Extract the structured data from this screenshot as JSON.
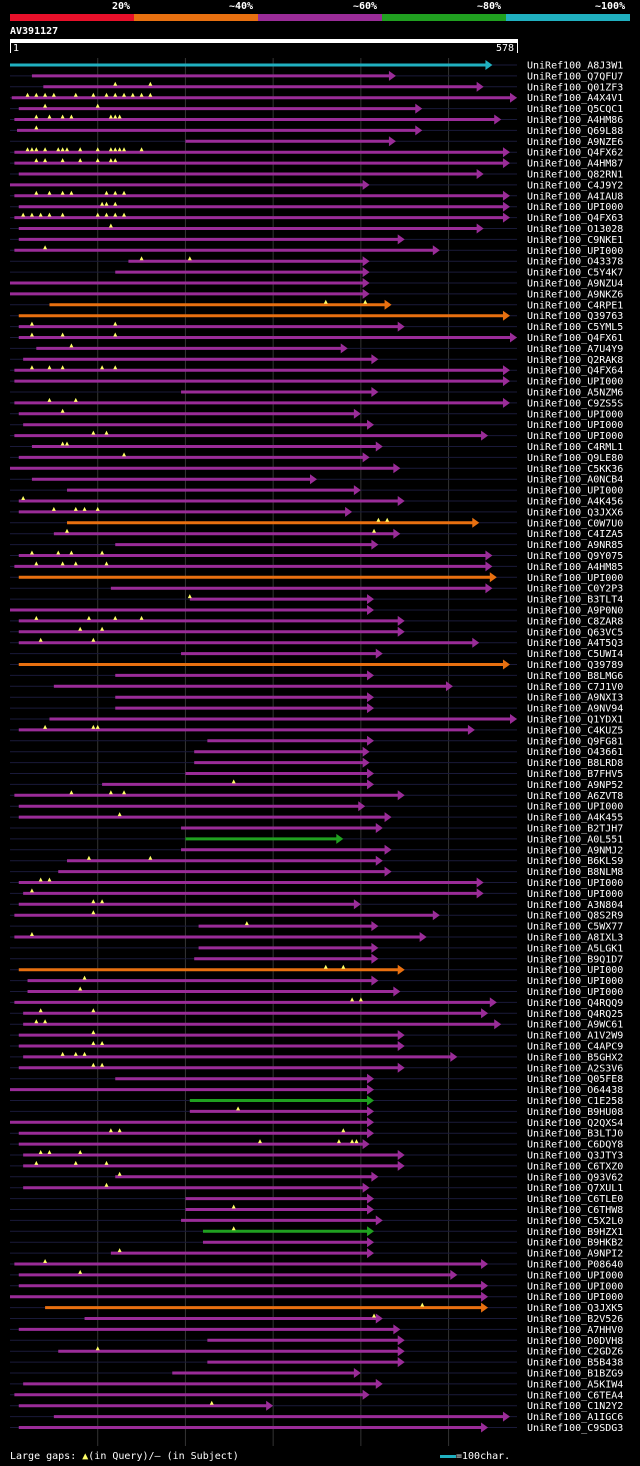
{
  "legend": {
    "segments": [
      {
        "label": "20%",
        "color": "#e8102a"
      },
      {
        "label": "~40%",
        "color": "#e87010"
      },
      {
        "label": "~60%",
        "color": "#9a2c98"
      },
      {
        "label": "~80%",
        "color": "#20a020"
      },
      {
        "label": "~100%",
        "color": "#20b0c0"
      }
    ]
  },
  "query": {
    "name": "AV391127",
    "start": "1",
    "end": "578",
    "length": 578
  },
  "footer": {
    "gaps_prefix": "Large gaps: ",
    "gaps_query_glyph": "▲",
    "gaps_query_text": "(in Query)/",
    "gaps_subject_glyph": "–",
    "gaps_subject_text": " (in Subject)",
    "scale_text": "=100char."
  },
  "colors": {
    "c1": "#e8102a",
    "c2": "#e87010",
    "c3": "#9a2c98",
    "c4": "#20a020",
    "c5": "#20b0c0",
    "gap": "#ffff66"
  },
  "hits": [
    {
      "label": "UniRef100_A8J3W1",
      "s": 0,
      "e": 550,
      "c": 5,
      "g": []
    },
    {
      "label": "UniRef100_Q7QFU7",
      "s": 25,
      "e": 440,
      "c": 3,
      "g": []
    },
    {
      "label": "UniRef100_Q01ZF3",
      "s": 38,
      "e": 540,
      "c": 3,
      "g": [
        120,
        160
      ]
    },
    {
      "label": "UniRef100_A4X4V1",
      "s": 2,
      "e": 578,
      "c": 3,
      "g": [
        20,
        30,
        40,
        50,
        75,
        95,
        110,
        120,
        130,
        140,
        150,
        160
      ]
    },
    {
      "label": "UniRef100_Q5CQC1",
      "s": 10,
      "e": 470,
      "c": 3,
      "g": [
        40,
        100
      ]
    },
    {
      "label": "UniRef100_A4HM86",
      "s": 5,
      "e": 560,
      "c": 3,
      "g": [
        30,
        45,
        60,
        70,
        115,
        120,
        125
      ]
    },
    {
      "label": "UniRef100_Q69L88",
      "s": 8,
      "e": 470,
      "c": 3,
      "g": [
        30
      ]
    },
    {
      "label": "UniRef100_A9NZE6",
      "s": 200,
      "e": 440,
      "c": 3,
      "g": []
    },
    {
      "label": "UniRef100_Q4FX62",
      "s": 5,
      "e": 570,
      "c": 3,
      "g": [
        20,
        25,
        30,
        40,
        55,
        60,
        65,
        80,
        100,
        115,
        120,
        125,
        130,
        150
      ]
    },
    {
      "label": "UniRef100_A4HM87",
      "s": 5,
      "e": 570,
      "c": 3,
      "g": [
        30,
        40,
        60,
        80,
        100,
        115,
        120
      ]
    },
    {
      "label": "UniRef100_Q82RN1",
      "s": 10,
      "e": 540,
      "c": 3,
      "g": []
    },
    {
      "label": "UniRef100_C4J9Y2",
      "s": 0,
      "e": 410,
      "c": 3,
      "g": []
    },
    {
      "label": "UniRef100_A4IAU8",
      "s": 5,
      "e": 570,
      "c": 3,
      "g": [
        30,
        45,
        60,
        70,
        110,
        120,
        130
      ]
    },
    {
      "label": "UniRef100_UPI000",
      "s": 10,
      "e": 570,
      "c": 3,
      "g": [
        105,
        110,
        120
      ]
    },
    {
      "label": "UniRef100_Q4FX63",
      "s": 5,
      "e": 570,
      "c": 3,
      "g": [
        15,
        25,
        35,
        45,
        60,
        100,
        110,
        120,
        130
      ]
    },
    {
      "label": "UniRef100_O13028",
      "s": 10,
      "e": 540,
      "c": 3,
      "g": [
        115
      ]
    },
    {
      "label": "UniRef100_C9NKE1",
      "s": 10,
      "e": 450,
      "c": 3,
      "g": []
    },
    {
      "label": "UniRef100_UPI000",
      "s": 5,
      "e": 490,
      "c": 3,
      "g": [
        40
      ]
    },
    {
      "label": "UniRef100_O43378",
      "s": 135,
      "e": 410,
      "c": 3,
      "g": [
        150,
        205
      ]
    },
    {
      "label": "UniRef100_C5Y4K7",
      "s": 120,
      "e": 410,
      "c": 3,
      "g": []
    },
    {
      "label": "UniRef100_A9NZU4",
      "s": 0,
      "e": 410,
      "c": 3,
      "g": []
    },
    {
      "label": "UniRef100_A9NKZ6",
      "s": 0,
      "e": 410,
      "c": 3,
      "g": []
    },
    {
      "label": "UniRef100_C4RPE1",
      "s": 45,
      "e": 435,
      "c": 2,
      "g": [
        360,
        405
      ]
    },
    {
      "label": "UniRef100_Q39763",
      "s": 10,
      "e": 570,
      "c": 2,
      "g": []
    },
    {
      "label": "UniRef100_C5YML5",
      "s": 10,
      "e": 450,
      "c": 3,
      "g": [
        25,
        120
      ]
    },
    {
      "label": "UniRef100_Q4FX61",
      "s": 10,
      "e": 578,
      "c": 3,
      "g": [
        25,
        60,
        120
      ]
    },
    {
      "label": "UniRef100_A7U4Y9",
      "s": 30,
      "e": 385,
      "c": 3,
      "g": [
        70
      ]
    },
    {
      "label": "UniRef100_Q2RAK8",
      "s": 15,
      "e": 420,
      "c": 3,
      "g": []
    },
    {
      "label": "UniRef100_Q4FX64",
      "s": 5,
      "e": 570,
      "c": 3,
      "g": [
        25,
        45,
        60,
        105,
        120
      ]
    },
    {
      "label": "UniRef100_UPI000",
      "s": 5,
      "e": 570,
      "c": 3,
      "g": []
    },
    {
      "label": "UniRef100_A5NZM6",
      "s": 195,
      "e": 420,
      "c": 3,
      "g": []
    },
    {
      "label": "UniRef100_C9ZS5S",
      "s": 5,
      "e": 570,
      "c": 3,
      "g": [
        45,
        75
      ]
    },
    {
      "label": "UniRef100_UPI000",
      "s": 10,
      "e": 400,
      "c": 3,
      "g": [
        60
      ]
    },
    {
      "label": "UniRef100_UPI000",
      "s": 15,
      "e": 415,
      "c": 3,
      "g": []
    },
    {
      "label": "UniRef100_UPI000",
      "s": 5,
      "e": 545,
      "c": 3,
      "g": [
        95,
        110
      ]
    },
    {
      "label": "UniRef100_C4RML1",
      "s": 25,
      "e": 425,
      "c": 3,
      "g": [
        60,
        65
      ]
    },
    {
      "label": "UniRef100_Q9LE80",
      "s": 10,
      "e": 410,
      "c": 3,
      "g": [
        130
      ]
    },
    {
      "label": "UniRef100_C5KK36",
      "s": 0,
      "e": 445,
      "c": 3,
      "g": []
    },
    {
      "label": "UniRef100_A0NCB4",
      "s": 25,
      "e": 350,
      "c": 3,
      "g": []
    },
    {
      "label": "UniRef100_UPI000",
      "s": 65,
      "e": 400,
      "c": 3,
      "g": []
    },
    {
      "label": "UniRef100_A4K456",
      "s": 10,
      "e": 450,
      "c": 3,
      "g": [
        15
      ]
    },
    {
      "label": "UniRef100_Q3JXX6",
      "s": 10,
      "e": 390,
      "c": 3,
      "g": [
        50,
        75,
        85,
        100
      ]
    },
    {
      "label": "UniRef100_C0W7U0",
      "s": 65,
      "e": 535,
      "c": 2,
      "g": [
        420,
        430
      ]
    },
    {
      "label": "UniRef100_C4IZA5",
      "s": 50,
      "e": 445,
      "c": 3,
      "g": [
        65,
        415
      ]
    },
    {
      "label": "UniRef100_A9NR85",
      "s": 120,
      "e": 420,
      "c": 3,
      "g": []
    },
    {
      "label": "UniRef100_Q9Y075",
      "s": 10,
      "e": 550,
      "c": 3,
      "g": [
        25,
        55,
        70,
        105
      ]
    },
    {
      "label": "UniRef100_A4HM85",
      "s": 5,
      "e": 550,
      "c": 3,
      "g": [
        30,
        60,
        75,
        110
      ]
    },
    {
      "label": "UniRef100_UPI000",
      "s": 10,
      "e": 555,
      "c": 2,
      "g": []
    },
    {
      "label": "UniRef100_C0Y2P3",
      "s": 115,
      "e": 550,
      "c": 3,
      "g": []
    },
    {
      "label": "UniRef100_B3TLT4",
      "s": 205,
      "e": 415,
      "c": 3,
      "g": [
        205
      ]
    },
    {
      "label": "UniRef100_A9P0N0",
      "s": 0,
      "e": 415,
      "c": 3,
      "g": []
    },
    {
      "label": "UniRef100_C8ZAR8",
      "s": 10,
      "e": 450,
      "c": 3,
      "g": [
        30,
        90,
        120,
        150
      ]
    },
    {
      "label": "UniRef100_Q63VC5",
      "s": 10,
      "e": 450,
      "c": 3,
      "g": [
        80,
        105
      ]
    },
    {
      "label": "UniRef100_A4T5Q3",
      "s": 10,
      "e": 535,
      "c": 3,
      "g": [
        35,
        95
      ]
    },
    {
      "label": "UniRef100_C5UWI4",
      "s": 195,
      "e": 425,
      "c": 3,
      "g": []
    },
    {
      "label": "UniRef100_Q39789",
      "s": 10,
      "e": 570,
      "c": 2,
      "g": []
    },
    {
      "label": "UniRef100_B8LMG6",
      "s": 120,
      "e": 415,
      "c": 3,
      "g": []
    },
    {
      "label": "UniRef100_C7J1V0",
      "s": 50,
      "e": 505,
      "c": 3,
      "g": []
    },
    {
      "label": "UniRef100_A9NXI3",
      "s": 120,
      "e": 415,
      "c": 3,
      "g": []
    },
    {
      "label": "UniRef100_A9NV94",
      "s": 120,
      "e": 415,
      "c": 3,
      "g": []
    },
    {
      "label": "UniRef100_Q1YDX1",
      "s": 45,
      "e": 578,
      "c": 3,
      "g": []
    },
    {
      "label": "UniRef100_C4KUZ5",
      "s": 10,
      "e": 530,
      "c": 3,
      "g": [
        40,
        95,
        100
      ]
    },
    {
      "label": "UniRef100_Q9FG81",
      "s": 225,
      "e": 415,
      "c": 3,
      "g": []
    },
    {
      "label": "UniRef100_O43661",
      "s": 210,
      "e": 410,
      "c": 3,
      "g": []
    },
    {
      "label": "UniRef100_B8LRD8",
      "s": 210,
      "e": 410,
      "c": 3,
      "g": []
    },
    {
      "label": "UniRef100_B7FHV5",
      "s": 200,
      "e": 415,
      "c": 3,
      "g": []
    },
    {
      "label": "UniRef100_A9NP52",
      "s": 105,
      "e": 415,
      "c": 3,
      "g": [
        255
      ]
    },
    {
      "label": "UniRef100_A6ZVT8",
      "s": 5,
      "e": 450,
      "c": 3,
      "g": [
        70,
        115,
        130
      ]
    },
    {
      "label": "UniRef100_UPI000",
      "s": 10,
      "e": 405,
      "c": 3,
      "g": []
    },
    {
      "label": "UniRef100_A4K455",
      "s": 10,
      "e": 435,
      "c": 3,
      "g": [
        125
      ]
    },
    {
      "label": "UniRef100_B2TJH7",
      "s": 195,
      "e": 425,
      "c": 3,
      "g": []
    },
    {
      "label": "UniRef100_A0L551",
      "s": 200,
      "e": 380,
      "c": 4,
      "g": []
    },
    {
      "label": "UniRef100_A9NMJ2",
      "s": 195,
      "e": 435,
      "c": 3,
      "g": []
    },
    {
      "label": "UniRef100_B6KLS9",
      "s": 65,
      "e": 425,
      "c": 3,
      "g": [
        90,
        160
      ]
    },
    {
      "label": "UniRef100_B8NLM8",
      "s": 55,
      "e": 435,
      "c": 3,
      "g": []
    },
    {
      "label": "UniRef100_UPI000",
      "s": 10,
      "e": 540,
      "c": 3,
      "g": [
        35,
        45
      ]
    },
    {
      "label": "UniRef100_UPI000",
      "s": 15,
      "e": 540,
      "c": 3,
      "g": [
        25
      ]
    },
    {
      "label": "UniRef100_A3N804",
      "s": 10,
      "e": 400,
      "c": 3,
      "g": [
        95,
        105
      ]
    },
    {
      "label": "UniRef100_Q8S2R9",
      "s": 5,
      "e": 490,
      "c": 3,
      "g": [
        95
      ]
    },
    {
      "label": "UniRef100_C5WX77",
      "s": 215,
      "e": 420,
      "c": 3,
      "g": [
        270
      ]
    },
    {
      "label": "UniRef100_A8IXL3",
      "s": 5,
      "e": 475,
      "c": 3,
      "g": [
        25
      ]
    },
    {
      "label": "UniRef100_A5LGK1",
      "s": 215,
      "e": 420,
      "c": 3,
      "g": []
    },
    {
      "label": "UniRef100_B9Q1D7",
      "s": 210,
      "e": 420,
      "c": 3,
      "g": []
    },
    {
      "label": "UniRef100_UPI000",
      "s": 10,
      "e": 450,
      "c": 2,
      "g": [
        360,
        380
      ]
    },
    {
      "label": "UniRef100_UPI000",
      "s": 20,
      "e": 420,
      "c": 3,
      "g": [
        85
      ]
    },
    {
      "label": "UniRef100_UPI000",
      "s": 20,
      "e": 445,
      "c": 3,
      "g": [
        80
      ]
    },
    {
      "label": "UniRef100_Q4RQQ9",
      "s": 5,
      "e": 555,
      "c": 3,
      "g": [
        390,
        400
      ]
    },
    {
      "label": "UniRef100_Q4RQ25",
      "s": 15,
      "e": 545,
      "c": 3,
      "g": [
        35,
        95
      ]
    },
    {
      "label": "UniRef100_A9WC61",
      "s": 15,
      "e": 560,
      "c": 3,
      "g": [
        30,
        40
      ]
    },
    {
      "label": "UniRef100_A1V2W9",
      "s": 10,
      "e": 450,
      "c": 3,
      "g": [
        95
      ]
    },
    {
      "label": "UniRef100_C4APC9",
      "s": 10,
      "e": 450,
      "c": 3,
      "g": [
        95,
        105
      ]
    },
    {
      "label": "UniRef100_B5GHX2",
      "s": 15,
      "e": 510,
      "c": 3,
      "g": [
        60,
        75,
        85
      ]
    },
    {
      "label": "UniRef100_A2S3V6",
      "s": 10,
      "e": 450,
      "c": 3,
      "g": [
        95,
        105
      ]
    },
    {
      "label": "UniRef100_Q05FE8",
      "s": 120,
      "e": 415,
      "c": 3,
      "g": []
    },
    {
      "label": "UniRef100_O64438",
      "s": 0,
      "e": 415,
      "c": 3,
      "g": []
    },
    {
      "label": "UniRef100_C1E258",
      "s": 205,
      "e": 415,
      "c": 4,
      "g": []
    },
    {
      "label": "UniRef100_B9HU08",
      "s": 205,
      "e": 415,
      "c": 3,
      "g": [
        260
      ]
    },
    {
      "label": "UniRef100_Q2QXS4",
      "s": 0,
      "e": 415,
      "c": 3,
      "g": []
    },
    {
      "label": "UniRef100_B3LTJ0",
      "s": 10,
      "e": 415,
      "c": 3,
      "g": [
        115,
        125,
        380
      ]
    },
    {
      "label": "UniRef100_C6DQY8",
      "s": 10,
      "e": 410,
      "c": 3,
      "g": [
        285,
        375,
        390,
        395
      ]
    },
    {
      "label": "UniRef100_Q3JTY3",
      "s": 15,
      "e": 450,
      "c": 3,
      "g": [
        35,
        45,
        80
      ]
    },
    {
      "label": "UniRef100_C6TXZ0",
      "s": 15,
      "e": 450,
      "c": 3,
      "g": [
        30,
        75,
        110
      ]
    },
    {
      "label": "UniRef100_Q93V62",
      "s": 120,
      "e": 420,
      "c": 3,
      "g": [
        125
      ]
    },
    {
      "label": "UniRef100_Q7XUL1",
      "s": 15,
      "e": 410,
      "c": 3,
      "g": [
        110
      ]
    },
    {
      "label": "UniRef100_C6TLE0",
      "s": 200,
      "e": 415,
      "c": 3,
      "g": []
    },
    {
      "label": "UniRef100_C6THW8",
      "s": 200,
      "e": 415,
      "c": 3,
      "g": [
        255
      ]
    },
    {
      "label": "UniRef100_C5X2L0",
      "s": 195,
      "e": 425,
      "c": 3,
      "g": []
    },
    {
      "label": "UniRef100_B9HZX1",
      "s": 220,
      "e": 415,
      "c": 4,
      "g": [
        255
      ]
    },
    {
      "label": "UniRef100_B9HKB2",
      "s": 220,
      "e": 415,
      "c": 3,
      "g": []
    },
    {
      "label": "UniRef100_A9NPI2",
      "s": 115,
      "e": 415,
      "c": 3,
      "g": [
        125
      ]
    },
    {
      "label": "UniRef100_P08640",
      "s": 5,
      "e": 545,
      "c": 3,
      "g": [
        40
      ]
    },
    {
      "label": "UniRef100_UPI000",
      "s": 10,
      "e": 510,
      "c": 3,
      "g": [
        80
      ]
    },
    {
      "label": "UniRef100_UPI000",
      "s": 10,
      "e": 545,
      "c": 3,
      "g": []
    },
    {
      "label": "UniRef100_UPI000",
      "s": 0,
      "e": 545,
      "c": 3,
      "g": []
    },
    {
      "label": "UniRef100_Q3JXK5",
      "s": 40,
      "e": 545,
      "c": 2,
      "g": [
        470
      ]
    },
    {
      "label": "UniRef100_B2V526",
      "s": 85,
      "e": 425,
      "c": 3,
      "g": [
        415
      ]
    },
    {
      "label": "UniRef100_A7HHV0",
      "s": 10,
      "e": 445,
      "c": 3,
      "g": []
    },
    {
      "label": "UniRef100_D0DVH8",
      "s": 225,
      "e": 450,
      "c": 3,
      "g": []
    },
    {
      "label": "UniRef100_C2GDZ6",
      "s": 55,
      "e": 450,
      "c": 3,
      "g": [
        100
      ]
    },
    {
      "label": "UniRef100_B5B438",
      "s": 225,
      "e": 450,
      "c": 3,
      "g": []
    },
    {
      "label": "UniRef100_B1BZG9",
      "s": 185,
      "e": 400,
      "c": 3,
      "g": []
    },
    {
      "label": "UniRef100_A5KIW4",
      "s": 15,
      "e": 425,
      "c": 3,
      "g": []
    },
    {
      "label": "UniRef100_C6TEA4",
      "s": 5,
      "e": 410,
      "c": 3,
      "g": []
    },
    {
      "label": "UniRef100_C1N2Y2",
      "s": 10,
      "e": 300,
      "c": 3,
      "g": [
        230
      ]
    },
    {
      "label": "UniRef100_A1IGC6",
      "s": 50,
      "e": 570,
      "c": 3,
      "g": []
    },
    {
      "label": "UniRef100_C9SDG3",
      "s": 10,
      "e": 545,
      "c": 3,
      "g": []
    }
  ]
}
